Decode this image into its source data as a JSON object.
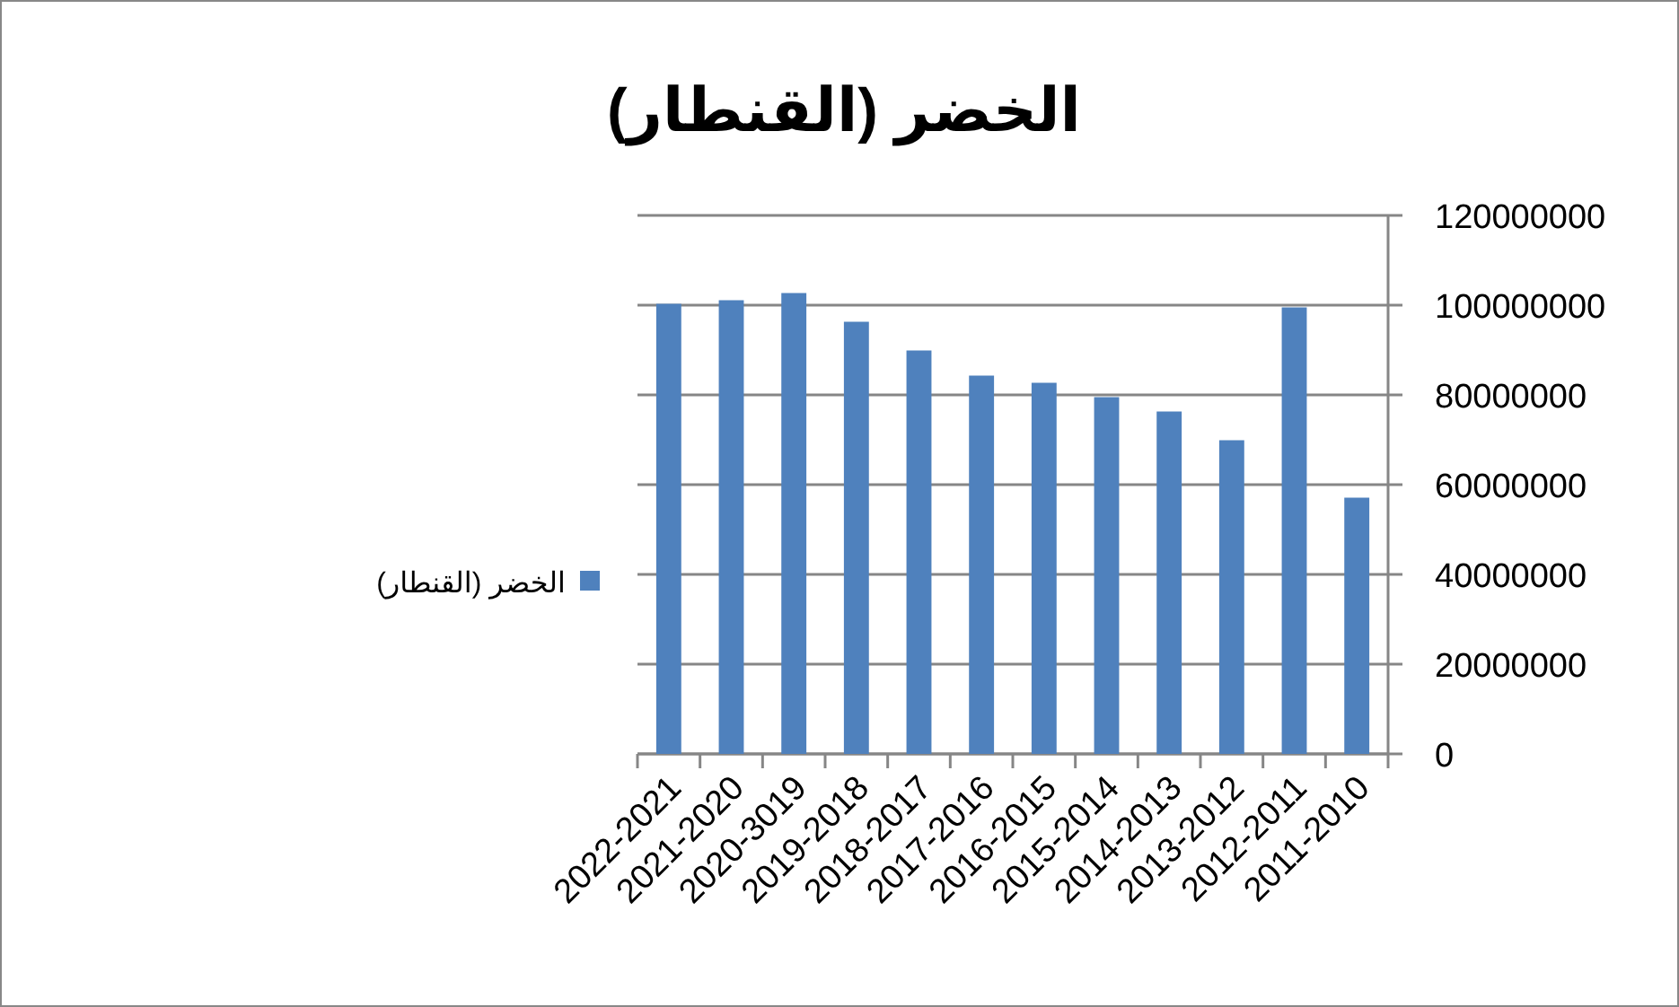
{
  "chart_data": {
    "type": "bar",
    "title": "الخضر (القنطار)",
    "categories": [
      "2022-2021",
      "2021-2020",
      "2020-3019",
      "2019-2018",
      "2018-2017",
      "2017-2016",
      "2016-2015",
      "2015-2014",
      "2014-2013",
      "2013-2012",
      "2012-2011",
      "2011-2010"
    ],
    "series": [
      {
        "name": "الخضر (القنطار)",
        "color": "#4f81bd",
        "values": [
          100300000,
          101100000,
          102700000,
          96300000,
          89900000,
          84300000,
          82700000,
          79500000,
          76300000,
          69900000,
          99500000,
          57100000
        ]
      }
    ],
    "ylim": [
      0,
      120000000
    ],
    "yticks": [
      0,
      20000000,
      40000000,
      60000000,
      80000000,
      100000000,
      120000000
    ],
    "grid": "y",
    "legend": "left"
  }
}
